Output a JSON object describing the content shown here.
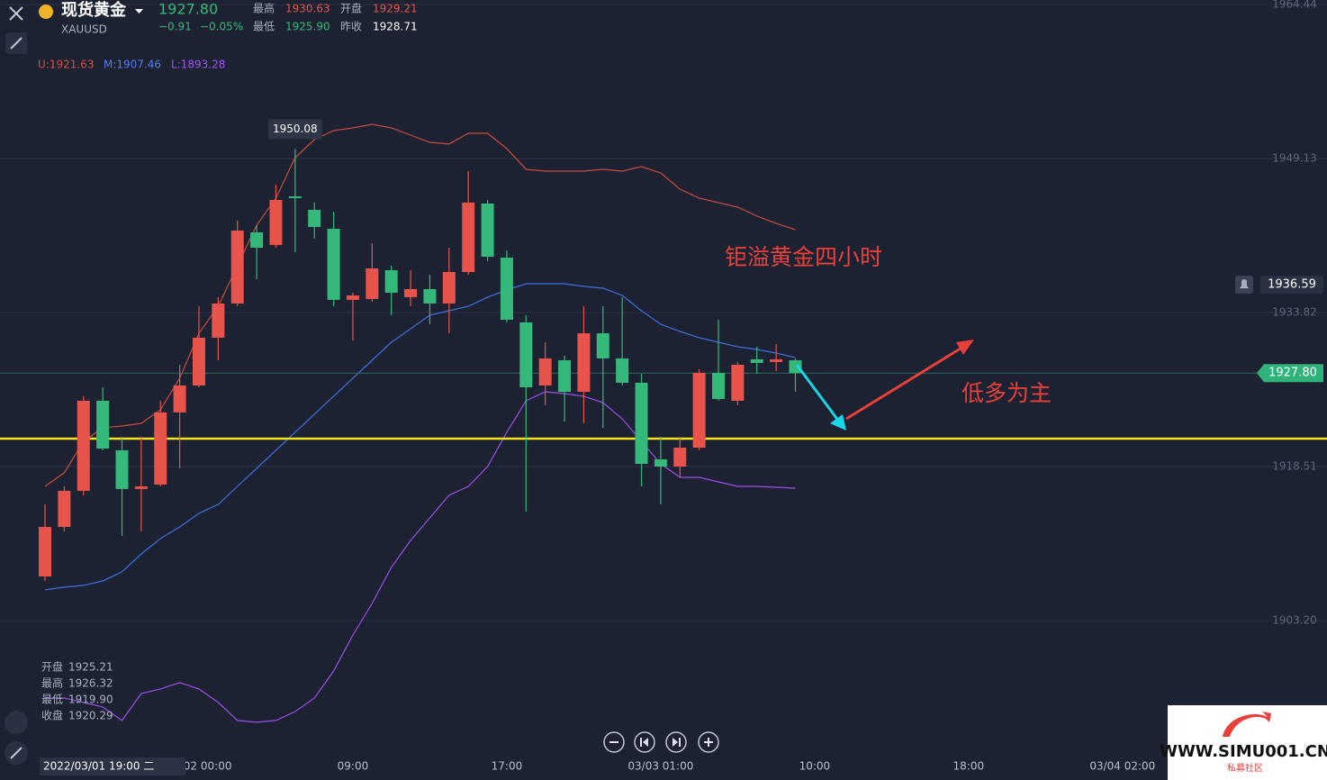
{
  "header": {
    "name": "现货黄金",
    "symbol": "XAUUSD",
    "price": "1927.80",
    "change": "−0.91",
    "change_pct": "−0.05%",
    "stats": [
      {
        "label": "最高",
        "value": "1930.63"
      },
      {
        "label": "开盘",
        "value": "1929.21"
      },
      {
        "label": "最低",
        "value": "1925.90"
      },
      {
        "label": "昨收",
        "value": "1928.71"
      }
    ]
  },
  "chart_data": {
    "type": "candlestick",
    "up_color": "#e8534b",
    "down_color": "#35b97b",
    "indicator_labels": [
      {
        "text": "U:1921.63",
        "color": "#d2503f"
      },
      {
        "text": "M:1907.46",
        "color": "#4f7df0"
      },
      {
        "text": "L:1893.28",
        "color": "#9d55f0"
      }
    ],
    "open": [
      1907.59,
      1912.51,
      1916.1,
      1925.05,
      1920.13,
      1916.28,
      1916.72,
      1923.89,
      1926.57,
      1931.32,
      1934.72,
      1941.79,
      1940.54,
      1945.37,
      1944.03,
      1942.15,
      1935.08,
      1935.17,
      1938.03,
      1935.35,
      1936.15,
      1934.72,
      1937.85,
      1944.66,
      1939.28,
      1932.84,
      1926.57,
      1929.08,
      1925.94,
      1931.76,
      1929.26,
      1926.84,
      1919.23,
      1918.51,
      1920.39,
      1927.82,
      1925.05,
      1929.17,
      1928.9,
      1929.08
    ],
    "high": [
      1914.75,
      1916.54,
      1925.5,
      1926.39,
      1921.47,
      1921.47,
      1925.05,
      1928.63,
      1934.45,
      1935.35,
      1942.96,
      1942.51,
      1946.54,
      1950.08,
      1944.75,
      1943.85,
      1935.79,
      1940.72,
      1938.48,
      1938.03,
      1937.58,
      1940.27,
      1947.88,
      1945.01,
      1939.99,
      1933.56,
      1930.87,
      1929.53,
      1934.45,
      1934.45,
      1935.35,
      1927.73,
      1921.47,
      1921.47,
      1928.18,
      1933.11,
      1928.9,
      1930.42,
      1930.69,
      1929.26
    ],
    "low": [
      1907.14,
      1912.07,
      1915.65,
      1920.13,
      1911.62,
      1912.07,
      1916.54,
      1918.33,
      1926.39,
      1929.08,
      1934.45,
      1937.14,
      1940.27,
      1939.82,
      1941.17,
      1934.45,
      1931.05,
      1934.9,
      1933.56,
      1934.45,
      1932.66,
      1931.76,
      1937.58,
      1938.93,
      1932.84,
      1914.04,
      1924.6,
      1922.99,
      1922.81,
      1922.36,
      1926.57,
      1916.54,
      1914.75,
      1917.44,
      1920.13,
      1925.05,
      1924.6,
      1927.73,
      1928.0,
      1925.94
    ],
    "close": [
      1912.51,
      1916.1,
      1925.05,
      1920.3,
      1916.28,
      1916.54,
      1923.89,
      1926.57,
      1931.32,
      1934.72,
      1941.97,
      1940.27,
      1945.01,
      1945.19,
      1942.33,
      1935.08,
      1935.52,
      1938.21,
      1935.79,
      1936.15,
      1934.72,
      1937.85,
      1944.75,
      1939.37,
      1933.11,
      1926.39,
      1929.26,
      1925.94,
      1931.76,
      1929.26,
      1926.84,
      1918.78,
      1918.51,
      1920.39,
      1927.82,
      1925.23,
      1928.63,
      1928.81,
      1929.17,
      1927.8
    ],
    "lines": [
      {
        "color": "#c94b3c",
        "values": [
          1916.54,
          1917.89,
          1921.02,
          1922.36,
          1922.54,
          1922.81,
          1924.15,
          1927.29,
          1931.76,
          1934.45,
          1938.48,
          1942.51,
          1945.19,
          1949.22,
          1951.01,
          1951.91,
          1952.18,
          1952.53,
          1952.18,
          1951.46,
          1950.74,
          1950.57,
          1951.64,
          1951.64,
          1950.12,
          1948.06,
          1947.88,
          1947.88,
          1947.88,
          1948.06,
          1947.88,
          1948.33,
          1947.7,
          1946.09,
          1945.19,
          1944.75,
          1944.3,
          1943.4,
          1942.69,
          1942.06
        ]
      },
      {
        "color": "#3f6fe0",
        "values": [
          1906.25,
          1906.52,
          1906.7,
          1907.14,
          1908.04,
          1909.83,
          1911.35,
          1912.51,
          1913.86,
          1914.75,
          1916.54,
          1918.33,
          1920.13,
          1921.92,
          1923.71,
          1925.5,
          1927.29,
          1929.08,
          1930.87,
          1932.21,
          1933.56,
          1934.0,
          1934.45,
          1935.35,
          1936.06,
          1936.69,
          1936.69,
          1936.69,
          1936.42,
          1936.24,
          1935.52,
          1934.0,
          1932.66,
          1931.94,
          1931.32,
          1930.87,
          1930.42,
          1930.15,
          1929.79,
          1929.35
        ]
      },
      {
        "color": "#9a4fe8",
        "values": [
          1895.5,
          1895.5,
          1895.06,
          1894.61,
          1893.27,
          1895.95,
          1896.4,
          1897.03,
          1896.4,
          1895.06,
          1893.27,
          1893.09,
          1893.27,
          1894.16,
          1895.5,
          1898.19,
          1901.77,
          1904.9,
          1908.49,
          1911.17,
          1913.41,
          1915.65,
          1916.54,
          1918.51,
          1921.92,
          1925.05,
          1925.94,
          1925.76,
          1925.5,
          1924.87,
          1923.26,
          1921.02,
          1918.78,
          1917.44,
          1917.44,
          1916.99,
          1916.54,
          1916.54,
          1916.45,
          1916.36
        ]
      }
    ],
    "ylim": [
      1889.68,
      1964.89
    ],
    "yticks": [
      1964.44,
      1949.13,
      1933.82,
      1918.51,
      {
        "value": 1903.2,
        "label": "1903.20"
      }
    ],
    "xlim": [
      -2.34,
      62.7
    ],
    "xticks": [
      {
        "value": 8,
        "label": "03/02 00:00"
      },
      {
        "value": 16,
        "label": "09:00"
      },
      {
        "value": 24,
        "label": "17:00"
      },
      {
        "value": 32,
        "label": "03/03 01:00"
      },
      {
        "value": 40,
        "label": "10:00"
      },
      {
        "value": 48,
        "label": "18:00"
      },
      {
        "value": 56,
        "label": "03/04 02:00"
      }
    ],
    "grid": true,
    "level": {
      "value": 1921.29,
      "color": "#f2e21c"
    },
    "alert": 1936.59,
    "annotations": [
      "钜溢黄金四小时",
      "低多为主"
    ],
    "crosshair": {
      "time": "2022/03/01 19:00 二",
      "ohlc": [
        {
          "label": "开盘",
          "value": "1925.21"
        },
        {
          "label": "最高",
          "value": "1926.32"
        },
        {
          "label": "最低",
          "value": "1919.90"
        },
        {
          "label": "收盘",
          "value": "1920.29"
        }
      ]
    }
  },
  "watermark": {
    "site": "WWW.SIMU001.CN",
    "tagline": "私募社区"
  }
}
